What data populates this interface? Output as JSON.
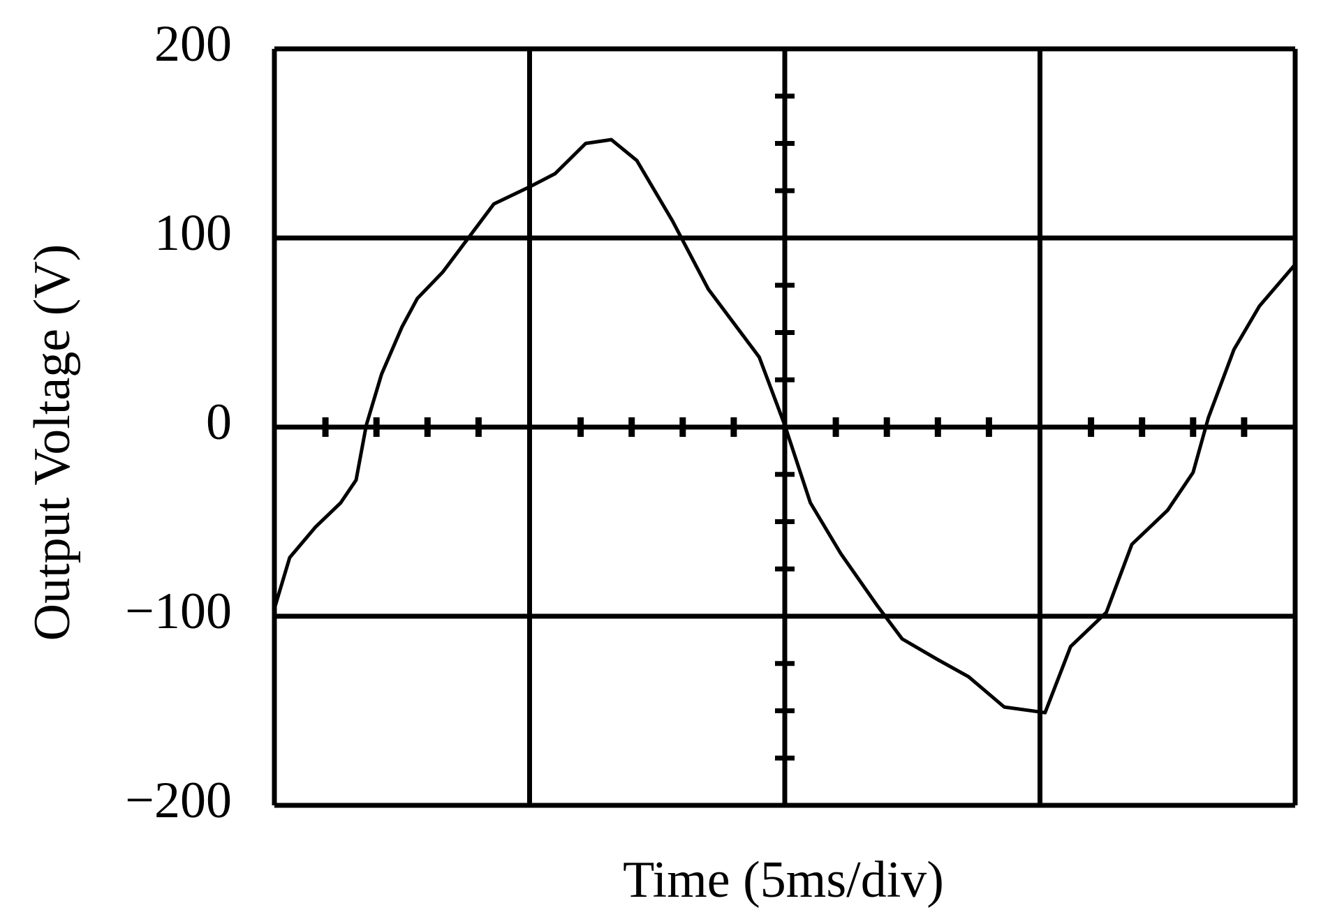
{
  "chart_data": {
    "type": "line",
    "x_label": "Time (5ms/div)",
    "y_label": "Output Voltage (V)",
    "xlim": [
      0,
      20
    ],
    "ylim": [
      -200,
      200
    ],
    "yticks": [
      {
        "value": -200,
        "label": "−200"
      },
      {
        "value": -100,
        "label": "−100"
      },
      0,
      100,
      200
    ],
    "grid": true,
    "x": [
      0,
      0.3,
      0.8,
      1.3,
      1.6,
      1.8,
      2.1,
      2.5,
      2.8,
      3.3,
      3.8,
      4.3,
      5.0,
      5.5,
      6.1,
      6.6,
      7.1,
      7.8,
      8.5,
      9.0,
      9.5,
      10.0,
      10.5,
      11.1,
      11.8,
      12.3,
      13.0,
      13.6,
      14.3,
      15.1,
      15.6,
      16.3,
      16.8,
      17.5,
      18.0,
      18.3,
      18.8,
      19.3,
      20
    ],
    "series": [
      {
        "color": "#000000",
        "values": [
          -96,
          -69,
          -53,
          -40,
          -28,
          1,
          28,
          53,
          68,
          82,
          100,
          118,
          127,
          134,
          150,
          152,
          141,
          109,
          73,
          55,
          37,
          1,
          -40,
          -67,
          -94,
          -112,
          -123,
          -132,
          -148,
          -151,
          -116,
          -98,
          -62,
          -44,
          -24,
          5,
          41,
          64,
          86
        ]
      }
    ]
  }
}
